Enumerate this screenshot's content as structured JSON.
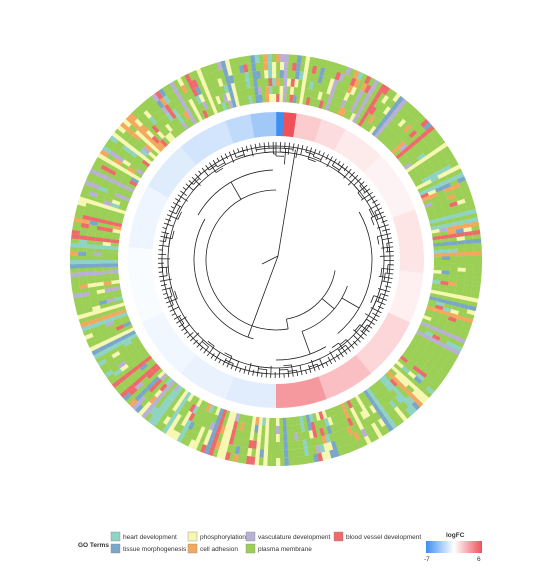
{
  "chart_data": {
    "type": "heatmap",
    "layout": "circular",
    "legend": {
      "title": "GO Terms",
      "position": "bottom",
      "entries": [
        {
          "label": "heart development",
          "color": "#8fd3c2"
        },
        {
          "label": "tissue morphogenesis",
          "color": "#7aa7c9"
        },
        {
          "label": "phosphorylation",
          "color": "#f6f7b0"
        },
        {
          "label": "cell adhesion",
          "color": "#f4a85e"
        },
        {
          "label": "vasculature development",
          "color": "#b9b0d6"
        },
        {
          "label": "plasma membrane",
          "color": "#9bcf55"
        },
        {
          "label": "blood vessel development",
          "color": "#ef6b6b"
        }
      ]
    },
    "colorbar": {
      "title": "logFC",
      "min": -7,
      "max": 6,
      "min_label": "-7",
      "max_label": "6",
      "low_color": "#3d8ff0",
      "mid_color": "#ffffff",
      "high_color": "#f0505a"
    },
    "logfc_segments": [
      {
        "start": 0,
        "end": 3,
        "value": -7
      },
      {
        "start": 3,
        "end": 8,
        "value": 6
      },
      {
        "start": 8,
        "end": 18,
        "value": 1.8
      },
      {
        "start": 18,
        "end": 28,
        "value": 1.2
      },
      {
        "start": 28,
        "end": 45,
        "value": 0.7
      },
      {
        "start": 45,
        "end": 70,
        "value": 0.4
      },
      {
        "start": 70,
        "end": 95,
        "value": 0.9
      },
      {
        "start": 95,
        "end": 115,
        "value": 0.5
      },
      {
        "start": 115,
        "end": 140,
        "value": 1.4
      },
      {
        "start": 140,
        "end": 160,
        "value": 2.2
      },
      {
        "start": 160,
        "end": 180,
        "value": 3.5
      },
      {
        "start": 180,
        "end": 200,
        "value": -1.1
      },
      {
        "start": 200,
        "end": 220,
        "value": -0.8
      },
      {
        "start": 220,
        "end": 245,
        "value": -0.5
      },
      {
        "start": 245,
        "end": 275,
        "value": -0.2
      },
      {
        "start": 275,
        "end": 300,
        "value": -0.6
      },
      {
        "start": 300,
        "end": 320,
        "value": -1.2
      },
      {
        "start": 320,
        "end": 340,
        "value": -1.6
      },
      {
        "start": 340,
        "end": 350,
        "value": -2.3
      },
      {
        "start": 350,
        "end": 360,
        "value": -3.4
      }
    ]
  }
}
